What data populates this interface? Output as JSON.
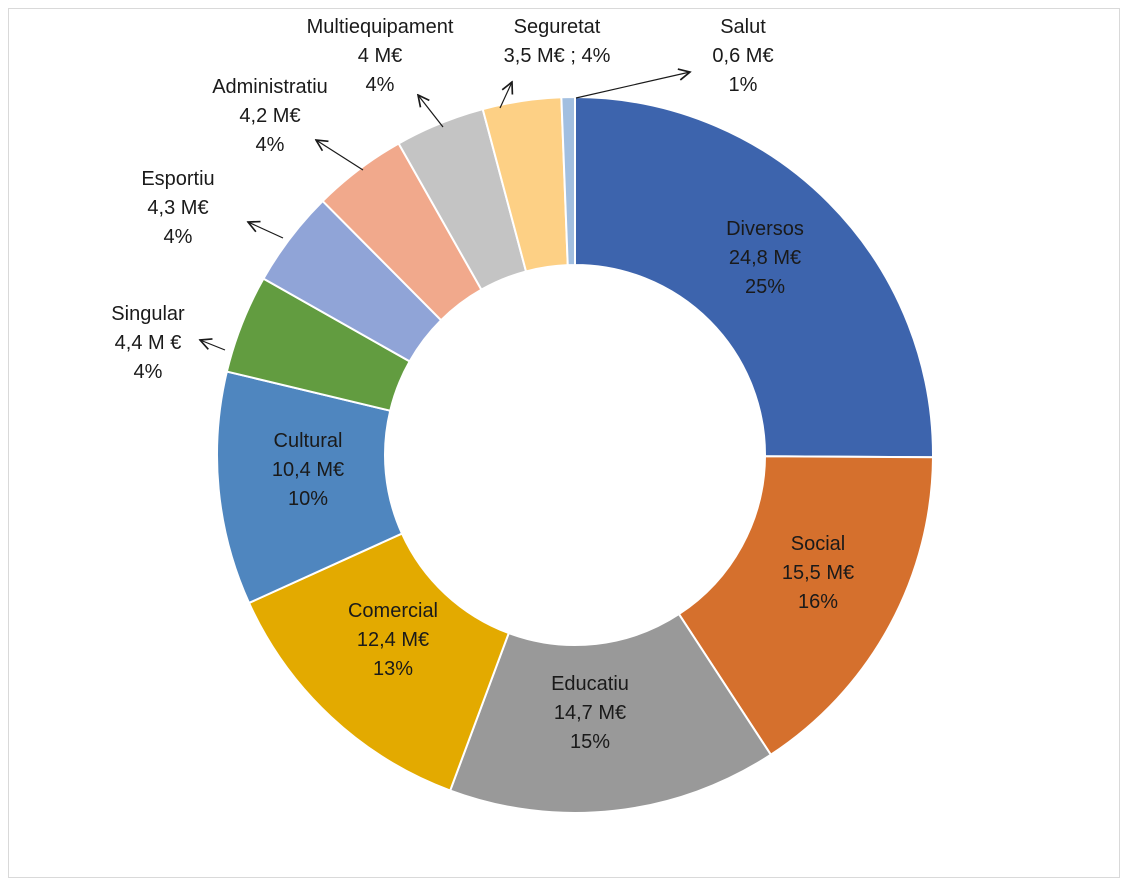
{
  "chart_data": {
    "type": "pie",
    "donut": true,
    "title": "",
    "slices": [
      {
        "label": "Diversos",
        "value_text": "24,8 M€",
        "pct_text": "25%",
        "value": 24.8,
        "color": "#3d64ad"
      },
      {
        "label": "Social",
        "value_text": "15,5 M€",
        "pct_text": "16%",
        "value": 15.5,
        "color": "#d5702d"
      },
      {
        "label": "Educatiu",
        "value_text": "14,7 M€",
        "pct_text": "15%",
        "value": 14.7,
        "color": "#999999"
      },
      {
        "label": "Comercial",
        "value_text": "12,4 M€",
        "pct_text": "13%",
        "value": 12.4,
        "color": "#e3aa00"
      },
      {
        "label": "Cultural",
        "value_text": "10,4 M€",
        "pct_text": "10%",
        "value": 10.4,
        "color": "#4f86bf"
      },
      {
        "label": "Singular",
        "value_text": "4,4 M €",
        "pct_text": "4%",
        "value": 4.4,
        "color": "#629c40"
      },
      {
        "label": "Esportiu",
        "value_text": "4,3 M€",
        "pct_text": "4%",
        "value": 4.3,
        "color": "#90a4d7"
      },
      {
        "label": "Administratiu",
        "value_text": "4,2 M€",
        "pct_text": "4%",
        "value": 4.2,
        "color": "#f1a98c"
      },
      {
        "label": "Multiequipament",
        "value_text": "4 M€",
        "pct_text": "4%",
        "value": 4.0,
        "color": "#c4c4c4"
      },
      {
        "label": "Seguretat",
        "value_text": "3,5 M€ ; 4%",
        "pct_text": "",
        "value": 3.5,
        "color": "#fdd085"
      },
      {
        "label": "Salut",
        "value_text": "0,6 M€",
        "pct_text": "1%",
        "value": 0.6,
        "color": "#a2bfe0"
      }
    ]
  }
}
